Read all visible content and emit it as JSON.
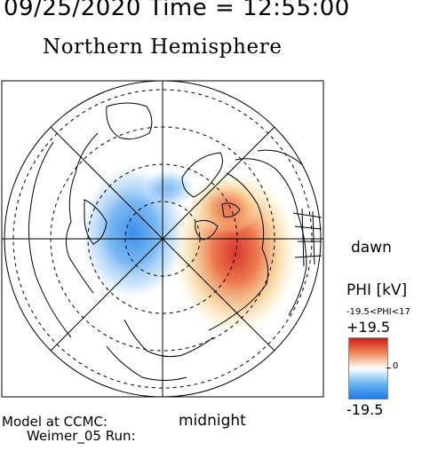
{
  "header": {
    "datetime": "09/25/2020 Time = 12:55:00"
  },
  "title": "Northern Hemisphere",
  "map": {
    "orientation_labels": {
      "dawn": "dawn",
      "midnight": "midnight"
    },
    "potential_pattern": {
      "positive_cell": "dawn side / post-midnight, red",
      "negative_cell": "dusk side / pre-midnight, blue"
    }
  },
  "legend": {
    "title": "PHI [kV]",
    "range_text": "-19.5<PHI<17",
    "max_label": "+19.5",
    "zero_label": "0",
    "min_label": "-19.5",
    "colors": {
      "max": "#d7191c",
      "zero": "#ffffff",
      "min": "#1f78e8"
    }
  },
  "footer": {
    "model_line": "Model at CCMC:",
    "run_line": "Weimer_05 Run:"
  }
}
